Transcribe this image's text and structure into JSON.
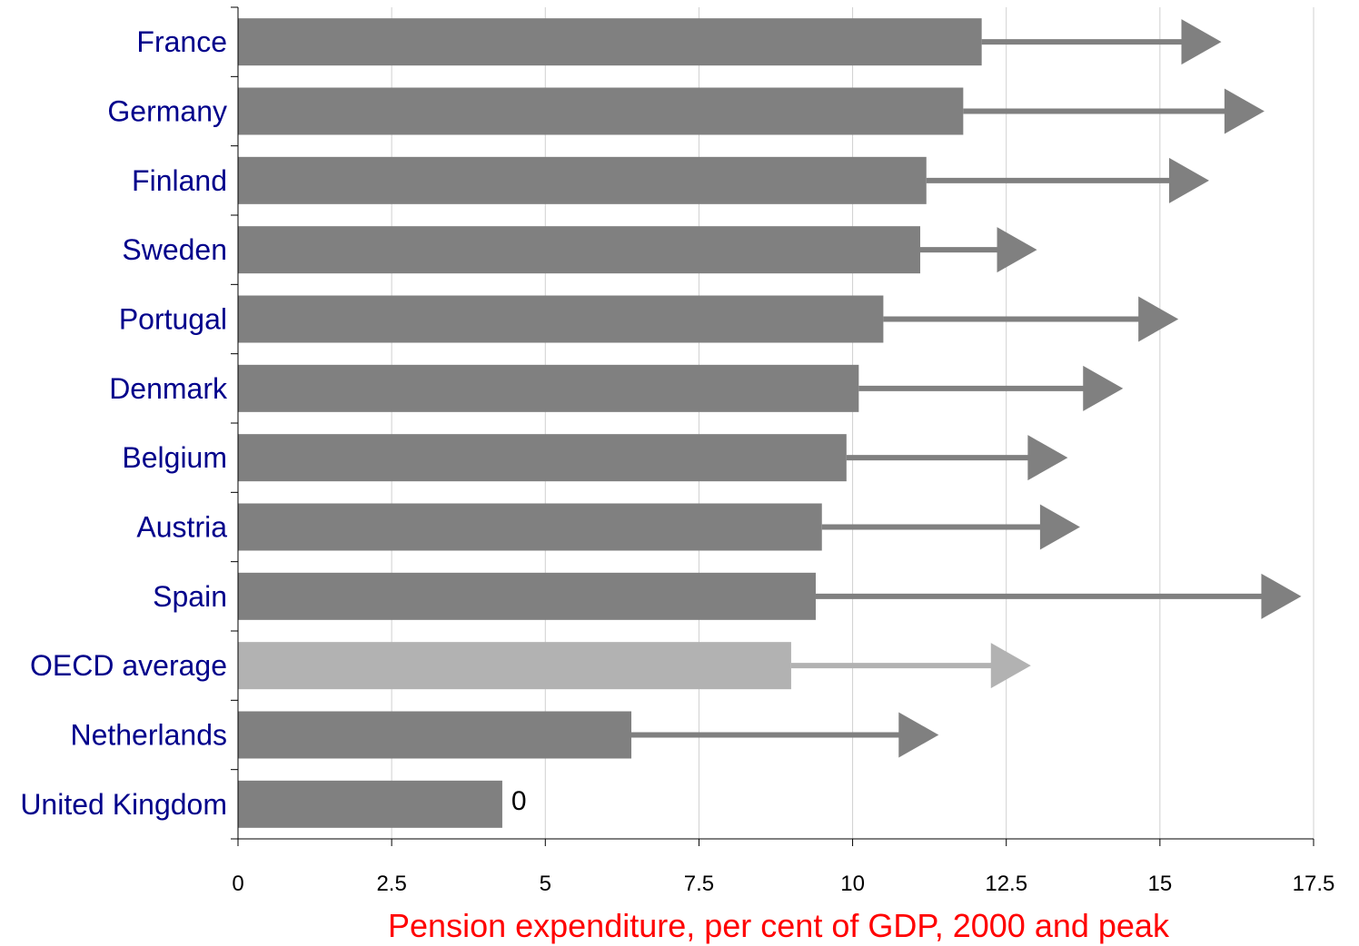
{
  "chart_data": {
    "type": "bar",
    "orientation": "horizontal",
    "categories": [
      "France",
      "Germany",
      "Finland",
      "Sweden",
      "Portugal",
      "Denmark",
      "Belgium",
      "Austria",
      "Spain",
      "OECD average",
      "Netherlands",
      "United Kingdom"
    ],
    "series": [
      {
        "values": [
          12.1,
          11.8,
          11.2,
          11.1,
          10.5,
          10.1,
          9.9,
          9.5,
          9.4,
          9.0,
          6.4,
          4.3
        ]
      },
      {
        "values": [
          16.0,
          16.7,
          15.8,
          13.0,
          15.3,
          14.4,
          13.5,
          13.7,
          17.3,
          12.9,
          11.4,
          null
        ]
      }
    ],
    "xlabel": "Pension expenditure, per cent of GDP, 2000 and peak",
    "xlim": [
      0,
      17.5
    ],
    "xticks": [
      "0",
      "2.5",
      "5",
      "7.5",
      "10",
      "12.5",
      "15",
      "17.5"
    ],
    "xtick_values": [
      0,
      2.5,
      5,
      7.5,
      10,
      12.5,
      15,
      17.5
    ],
    "annotations": [
      {
        "category": "United Kingdom",
        "text": "0"
      }
    ],
    "grid": "vertical",
    "highlight_category": "OECD average",
    "colors": {
      "bar": "#808080",
      "highlight_bar": "#b2b2b2",
      "arrow": "#808080",
      "highlight_arrow": "#b2b2b2",
      "category_label": "#00008b",
      "xlabel": "#ff0000",
      "grid": "#d0d0d0"
    }
  }
}
